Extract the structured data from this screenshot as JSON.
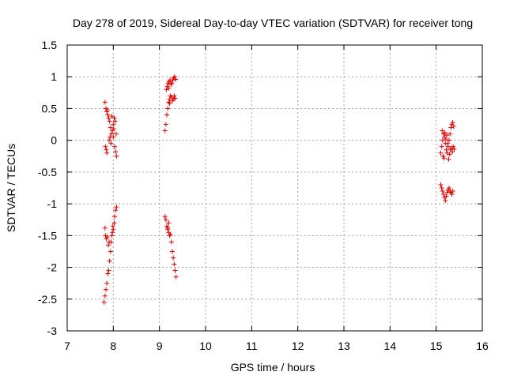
{
  "chart_data": {
    "type": "scatter",
    "title": "Day 278 of 2019, Sidereal Day-to-day VTEC variation (SDTVAR) for receiver tong",
    "xlabel": "GPS time / hours",
    "ylabel": "SDTVAR / TECUs",
    "xlim": [
      7,
      16
    ],
    "ylim": [
      -3,
      1.5
    ],
    "xticks": [
      "7",
      "8",
      "9",
      "10",
      "11",
      "12",
      "13",
      "14",
      "15",
      "16"
    ],
    "yticks": [
      "-3",
      "-2.5",
      "-2",
      "-1.5",
      "-1",
      "-0.5",
      "0",
      "0.5",
      "1",
      "1.5"
    ],
    "grid": true,
    "marker": "+",
    "color": "#e00000",
    "series": [
      {
        "name": "SDTVAR",
        "points": [
          [
            7.82,
            0.6
          ],
          [
            7.84,
            0.5
          ],
          [
            7.86,
            0.45
          ],
          [
            7.88,
            0.4
          ],
          [
            7.9,
            0.35
          ],
          [
            7.87,
            0.48
          ],
          [
            7.92,
            0.3
          ],
          [
            7.94,
            0.2
          ],
          [
            7.96,
            0.1
          ],
          [
            7.93,
            0.05
          ],
          [
            7.91,
            0.0
          ],
          [
            7.95,
            -0.05
          ],
          [
            7.98,
            0.15
          ],
          [
            8.0,
            0.25
          ],
          [
            8.02,
            0.35
          ],
          [
            8.04,
            0.3
          ],
          [
            8.0,
            0.05
          ],
          [
            8.03,
            -0.1
          ],
          [
            8.05,
            -0.18
          ],
          [
            8.07,
            -0.25
          ],
          [
            8.06,
            0.1
          ],
          [
            7.83,
            -0.1
          ],
          [
            7.85,
            -0.15
          ],
          [
            7.86,
            -0.2
          ],
          [
            7.97,
            0.38
          ],
          [
            8.01,
            0.18
          ],
          [
            7.8,
            -2.55
          ],
          [
            7.82,
            -2.45
          ],
          [
            7.84,
            -2.35
          ],
          [
            7.86,
            -2.25
          ],
          [
            7.88,
            -2.1
          ],
          [
            7.9,
            -2.05
          ],
          [
            7.92,
            -1.9
          ],
          [
            7.94,
            -1.75
          ],
          [
            7.95,
            -1.6
          ],
          [
            7.97,
            -1.5
          ],
          [
            7.98,
            -1.45
          ],
          [
            8.0,
            -1.4
          ],
          [
            8.02,
            -1.3
          ],
          [
            8.03,
            -1.2
          ],
          [
            8.05,
            -1.1
          ],
          [
            8.07,
            -1.05
          ],
          [
            7.83,
            -1.5
          ],
          [
            7.85,
            -1.55
          ],
          [
            7.87,
            -1.52
          ],
          [
            7.89,
            -1.65
          ],
          [
            7.91,
            -1.6
          ],
          [
            7.82,
            -1.38
          ],
          [
            7.99,
            -1.35
          ],
          [
            9.12,
            0.15
          ],
          [
            9.14,
            0.25
          ],
          [
            9.16,
            0.4
          ],
          [
            9.18,
            0.5
          ],
          [
            9.2,
            0.6
          ],
          [
            9.22,
            0.65
          ],
          [
            9.24,
            0.7
          ],
          [
            9.26,
            0.68
          ],
          [
            9.28,
            0.62
          ],
          [
            9.3,
            0.65
          ],
          [
            9.32,
            0.7
          ],
          [
            9.34,
            0.66
          ],
          [
            9.15,
            0.8
          ],
          [
            9.17,
            0.85
          ],
          [
            9.19,
            0.9
          ],
          [
            9.21,
            0.92
          ],
          [
            9.23,
            0.95
          ],
          [
            9.25,
            0.88
          ],
          [
            9.27,
            0.9
          ],
          [
            9.29,
            0.95
          ],
          [
            9.31,
            0.98
          ],
          [
            9.33,
            1.0
          ],
          [
            9.35,
            0.96
          ],
          [
            9.2,
            0.82
          ],
          [
            9.22,
            0.58
          ],
          [
            9.12,
            -1.2
          ],
          [
            9.14,
            -1.25
          ],
          [
            9.16,
            -1.35
          ],
          [
            9.18,
            -1.4
          ],
          [
            9.2,
            -1.45
          ],
          [
            9.22,
            -1.5
          ],
          [
            9.24,
            -1.48
          ],
          [
            9.26,
            -1.6
          ],
          [
            9.28,
            -1.75
          ],
          [
            9.3,
            -1.85
          ],
          [
            9.32,
            -1.95
          ],
          [
            9.34,
            -2.05
          ],
          [
            9.36,
            -2.15
          ],
          [
            9.2,
            -1.3
          ],
          [
            9.18,
            -1.38
          ],
          [
            15.1,
            -0.7
          ],
          [
            15.12,
            -0.75
          ],
          [
            15.14,
            -0.8
          ],
          [
            15.16,
            -0.85
          ],
          [
            15.18,
            -0.9
          ],
          [
            15.2,
            -0.95
          ],
          [
            15.22,
            -0.88
          ],
          [
            15.24,
            -0.82
          ],
          [
            15.26,
            -0.78
          ],
          [
            15.28,
            -0.75
          ],
          [
            15.3,
            -0.8
          ],
          [
            15.32,
            -0.82
          ],
          [
            15.34,
            -0.85
          ],
          [
            15.36,
            -0.8
          ],
          [
            15.1,
            -0.2
          ],
          [
            15.12,
            -0.1
          ],
          [
            15.14,
            0.0
          ],
          [
            15.16,
            0.1
          ],
          [
            15.18,
            0.05
          ],
          [
            15.2,
            -0.05
          ],
          [
            15.22,
            -0.15
          ],
          [
            15.24,
            -0.2
          ],
          [
            15.26,
            -0.1
          ],
          [
            15.28,
            0.0
          ],
          [
            15.3,
            0.1
          ],
          [
            15.32,
            0.2
          ],
          [
            15.34,
            0.25
          ],
          [
            15.36,
            0.28
          ],
          [
            15.38,
            0.22
          ],
          [
            15.15,
            -0.25
          ],
          [
            15.17,
            -0.28
          ],
          [
            15.21,
            0.02
          ],
          [
            15.23,
            0.08
          ],
          [
            15.25,
            -0.05
          ],
          [
            15.27,
            -0.3
          ],
          [
            15.29,
            -0.22
          ],
          [
            15.31,
            -0.15
          ],
          [
            15.33,
            -0.12
          ],
          [
            15.35,
            -0.18
          ],
          [
            15.37,
            -0.1
          ],
          [
            15.39,
            -0.14
          ],
          [
            15.19,
            0.12
          ],
          [
            15.13,
            0.15
          ]
        ]
      }
    ]
  }
}
